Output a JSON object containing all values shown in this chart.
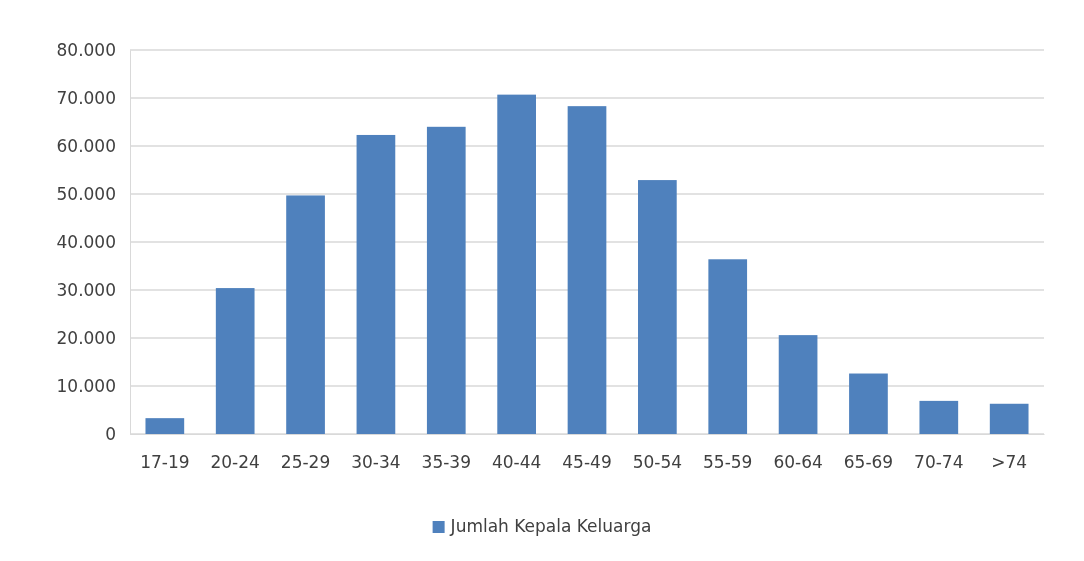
{
  "chart_data": {
    "type": "bar",
    "categories": [
      "17-19",
      "20-24",
      "25-29",
      "30-34",
      "35-39",
      "40-44",
      "45-49",
      "50-54",
      "55-59",
      "60-64",
      "65-69",
      "70-74",
      ">74"
    ],
    "series": [
      {
        "name": "Jumlah Kepala Keluarga",
        "color": "#4f81bd",
        "values": [
          3300,
          30400,
          49700,
          62300,
          64000,
          70700,
          68300,
          52900,
          36400,
          20600,
          12600,
          6900,
          6300
        ]
      }
    ],
    "ylim": [
      0,
      80000
    ],
    "yticks": [
      0,
      {
        "value": 10000,
        "label": "10.000"
      },
      {
        "value": 20000,
        "label": "20.000"
      },
      {
        "value": 30000,
        "label": "30.000"
      },
      {
        "value": 40000,
        "label": "40.000"
      },
      {
        "value": 50000,
        "label": "50.000"
      },
      {
        "value": 60000,
        "label": "60.000"
      },
      {
        "value": 70000,
        "label": "70.000"
      },
      {
        "value": 80000,
        "label": "80.000"
      }
    ],
    "grid": "y",
    "legend": "bottom"
  }
}
